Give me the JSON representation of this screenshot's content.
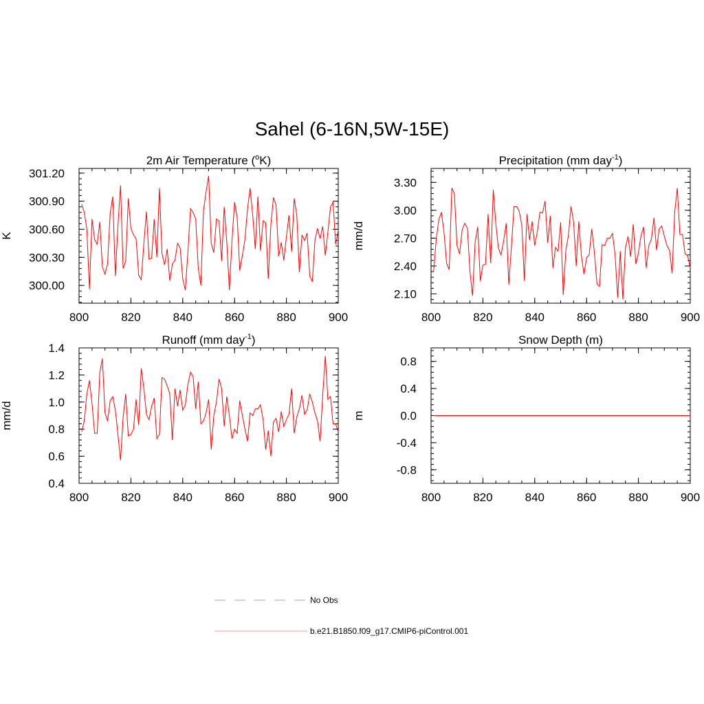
{
  "title": "Sahel (6-16N,5W-15E)",
  "legend": {
    "placement": "bottom-center",
    "items": [
      {
        "label": "No Obs",
        "color": "#9999ff",
        "style": "dashed"
      },
      {
        "label": "b.e21.B1850.f09_g17.CMIP6-piControl.001",
        "color": "#ff9999",
        "style": "solid"
      }
    ]
  },
  "chart_data": [
    {
      "type": "line",
      "panel": "top-left",
      "title": "2m Air Temperature (",
      "title_sup": "o",
      "title_tail": "K)",
      "xlabel": "",
      "ylabel": "K",
      "xlim": [
        800,
        900
      ],
      "ylim": [
        299.81,
        301.25
      ],
      "xticks": [
        800,
        820,
        840,
        860,
        880,
        900
      ],
      "yticks": [
        300.0,
        300.3,
        300.6,
        300.9,
        301.2
      ],
      "ytick_labels": [
        "300.00",
        "300.30",
        "300.60",
        "300.90",
        "301.20"
      ],
      "minor_y_step": 0.06,
      "minor_x_step": 5,
      "grid": false,
      "color": "#ff0000",
      "x_start": 801,
      "values": [
        300.87,
        300.78,
        300.6,
        299.96,
        300.71,
        300.49,
        300.44,
        300.68,
        300.2,
        300.12,
        300.23,
        300.77,
        300.95,
        300.1,
        300.64,
        301.07,
        300.18,
        300.26,
        300.93,
        300.61,
        300.54,
        300.5,
        300.11,
        300.06,
        300.45,
        300.79,
        300.28,
        300.29,
        300.71,
        300.3,
        301.04,
        300.34,
        300.22,
        300.39,
        300.05,
        300.23,
        300.27,
        300.45,
        300.4,
        300.07,
        299.95,
        300.36,
        300.82,
        300.78,
        300.71,
        300.18,
        300.0,
        300.8,
        301.0,
        301.17,
        300.45,
        300.35,
        300.71,
        300.69,
        300.26,
        300.84,
        300.46,
        299.95,
        300.48,
        300.89,
        300.73,
        300.16,
        300.32,
        300.49,
        300.82,
        301.04,
        300.75,
        300.39,
        300.95,
        300.37,
        300.69,
        300.67,
        300.07,
        300.65,
        300.94,
        300.86,
        300.31,
        300.46,
        300.27,
        300.52,
        300.75,
        300.36,
        300.93,
        300.75,
        300.14,
        300.54,
        300.48,
        300.56,
        300.1,
        300.04,
        300.48,
        300.61,
        300.5,
        300.63,
        300.32,
        300.57,
        300.84,
        300.89,
        300.44,
        300.59
      ]
    },
    {
      "type": "line",
      "panel": "top-right",
      "title": "Precipitation (mm day",
      "title_sup": "-1",
      "title_tail": ")",
      "xlabel": "",
      "ylabel": "mm/d",
      "xlim": [
        800,
        900
      ],
      "ylim": [
        2.0,
        3.45
      ],
      "xticks": [
        800,
        820,
        840,
        860,
        880,
        900
      ],
      "yticks": [
        2.1,
        2.4,
        2.7,
        3.0,
        3.3
      ],
      "ytick_labels": [
        "2.10",
        "2.40",
        "2.70",
        "3.00",
        "3.30"
      ],
      "minor_y_step": 0.06,
      "minor_x_step": 5,
      "grid": false,
      "color": "#ff0000",
      "x_start": 801,
      "values": [
        2.34,
        2.69,
        2.9,
        2.98,
        2.76,
        2.43,
        2.36,
        3.24,
        3.18,
        2.62,
        2.53,
        2.79,
        2.86,
        2.81,
        2.34,
        2.08,
        2.66,
        2.82,
        2.24,
        2.41,
        2.42,
        2.96,
        2.43,
        3.22,
        2.85,
        2.59,
        2.52,
        2.67,
        2.86,
        2.2,
        2.61,
        3.04,
        3.04,
        2.99,
        2.84,
        2.24,
        2.96,
        2.68,
        2.88,
        2.62,
        2.77,
        2.98,
        2.97,
        3.1,
        2.65,
        2.94,
        2.38,
        2.6,
        2.56,
        2.87,
        2.09,
        2.57,
        2.73,
        3.04,
        2.87,
        2.4,
        2.88,
        2.51,
        2.31,
        2.49,
        2.52,
        2.8,
        2.55,
        2.21,
        2.18,
        2.63,
        2.62,
        2.7,
        2.7,
        2.75,
        2.52,
        2.06,
        2.56,
        2.04,
        2.6,
        2.72,
        2.5,
        2.85,
        2.42,
        2.54,
        2.73,
        2.82,
        2.38,
        2.62,
        2.69,
        2.92,
        2.57,
        2.8,
        2.83,
        2.72,
        2.62,
        2.57,
        2.32,
        2.98,
        3.24,
        2.74,
        2.74,
        2.53,
        2.51,
        2.38
      ]
    },
    {
      "type": "line",
      "panel": "bottom-left",
      "title": "Runoff (mm day",
      "title_sup": "-1",
      "title_tail": ")",
      "xlabel": "",
      "ylabel": "mm/d",
      "xlim": [
        800,
        900
      ],
      "ylim": [
        0.4,
        1.4
      ],
      "xticks": [
        800,
        820,
        840,
        860,
        880,
        900
      ],
      "yticks": [
        0.4,
        0.6,
        0.8,
        1.0,
        1.2,
        1.4
      ],
      "ytick_labels": [
        "0.4",
        "0.6",
        "0.8",
        "1.0",
        "1.2",
        "1.4"
      ],
      "minor_y_step": 0.04,
      "minor_x_step": 5,
      "grid": false,
      "color": "#ff0000",
      "x_start": 801,
      "values": [
        0.78,
        0.86,
        1.06,
        1.16,
        0.99,
        0.77,
        0.77,
        1.22,
        1.32,
        0.92,
        0.86,
        1.01,
        1.04,
        0.94,
        0.76,
        0.57,
        0.89,
        1.06,
        0.75,
        0.76,
        0.8,
        1.02,
        0.83,
        1.25,
        1.1,
        0.91,
        0.87,
        0.97,
        1.03,
        0.73,
        0.76,
        1.18,
        1.17,
        1.12,
        1.06,
        0.72,
        1.1,
        0.97,
        1.09,
        0.94,
        0.98,
        1.13,
        1.22,
        1.19,
        0.95,
        1.15,
        0.84,
        0.86,
        0.92,
        1.02,
        0.65,
        0.9,
        1.0,
        1.17,
        1.1,
        0.82,
        1.04,
        0.9,
        0.73,
        0.8,
        0.77,
        1.01,
        0.9,
        0.8,
        0.71,
        0.92,
        0.9,
        0.95,
        0.95,
        0.98,
        0.87,
        0.65,
        0.79,
        0.6,
        0.85,
        0.88,
        0.78,
        0.93,
        0.82,
        0.87,
        0.91,
        1.1,
        0.77,
        0.89,
        0.95,
        1.05,
        0.91,
        0.94,
        1.06,
        1.0,
        0.92,
        0.86,
        0.71,
        1.05,
        1.34,
        1.02,
        1.04,
        0.84,
        0.84,
        0.78
      ]
    },
    {
      "type": "line",
      "panel": "bottom-right",
      "title": "Snow Depth (m)",
      "title_sup": "",
      "title_tail": "",
      "xlabel": "",
      "ylabel": "m",
      "xlim": [
        800,
        900
      ],
      "ylim": [
        -1.0,
        1.0
      ],
      "xticks": [
        800,
        820,
        840,
        860,
        880,
        900
      ],
      "yticks": [
        -0.8,
        -0.4,
        0.0,
        0.4,
        0.8
      ],
      "ytick_labels": [
        "-0.8",
        "-0.4",
        "0.0",
        "0.4",
        "0.8"
      ],
      "minor_y_step": 0.08,
      "minor_x_step": 5,
      "grid": false,
      "color": "#ff0000",
      "x_start": 801,
      "values": [
        0,
        0,
        0,
        0,
        0,
        0,
        0,
        0,
        0,
        0,
        0,
        0,
        0,
        0,
        0,
        0,
        0,
        0,
        0,
        0,
        0,
        0,
        0,
        0,
        0,
        0,
        0,
        0,
        0,
        0,
        0,
        0,
        0,
        0,
        0,
        0,
        0,
        0,
        0,
        0,
        0,
        0,
        0,
        0,
        0,
        0,
        0,
        0,
        0,
        0,
        0,
        0,
        0,
        0,
        0,
        0,
        0,
        0,
        0,
        0,
        0,
        0,
        0,
        0,
        0,
        0,
        0,
        0,
        0,
        0,
        0,
        0,
        0,
        0,
        0,
        0,
        0,
        0,
        0,
        0,
        0,
        0,
        0,
        0,
        0,
        0,
        0,
        0,
        0,
        0,
        0,
        0,
        0,
        0,
        0,
        0,
        0,
        0,
        0,
        0
      ]
    }
  ]
}
